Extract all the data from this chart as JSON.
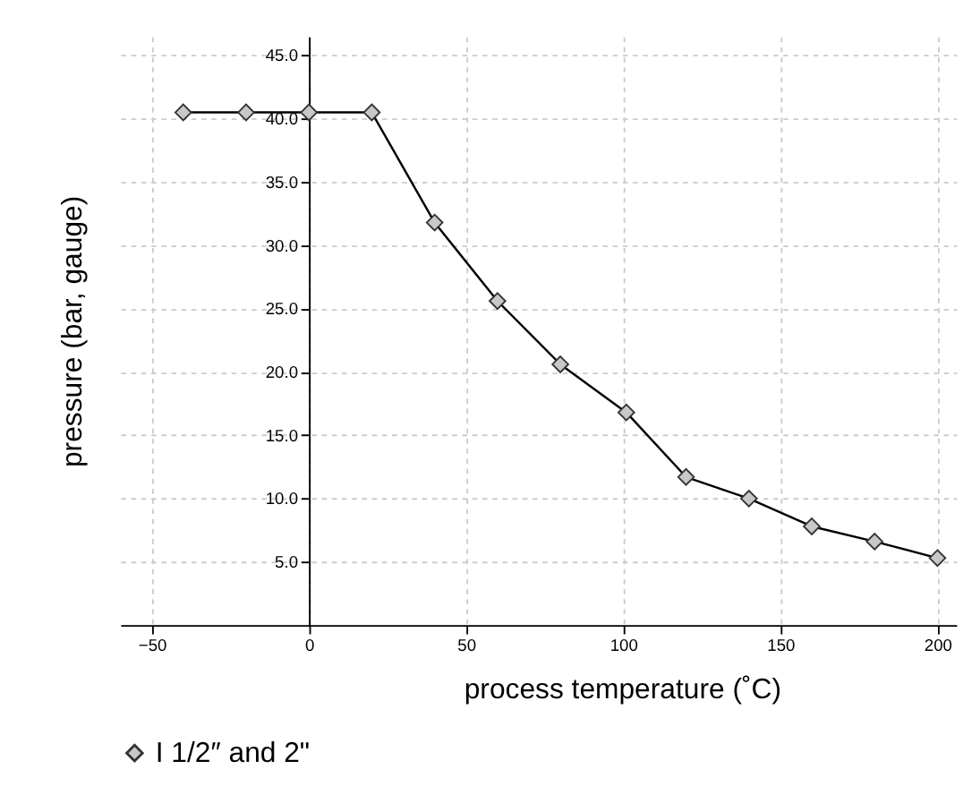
{
  "chart_data": {
    "type": "line",
    "xlabel": "process temperature (˚C)",
    "ylabel": "pressure (bar, gauge)",
    "x": [
      -40,
      -20,
      0,
      20,
      40,
      60,
      80,
      101,
      120,
      140,
      160,
      180,
      200
    ],
    "series": [
      {
        "name": "I 1/2″ and 2\"",
        "color": "#000000",
        "values": [
          40.5,
          40.5,
          40.5,
          40.5,
          31.8,
          25.6,
          20.6,
          16.8,
          11.7,
          10.0,
          7.8,
          6.6,
          5.3
        ]
      }
    ],
    "xlim": [
      -60,
      206
    ],
    "ylim": [
      0,
      46.5
    ],
    "xticks": [
      -50,
      0,
      50,
      100,
      150,
      200
    ],
    "yticks": [
      {
        "value": 5,
        "label": "5.0"
      },
      {
        "value": 10,
        "label": "10.0"
      },
      {
        "value": 15,
        "label": "15.0"
      },
      {
        "value": 20,
        "label": "20.0"
      },
      {
        "value": 25,
        "label": "25.0"
      },
      {
        "value": 30,
        "label": "30.0"
      },
      {
        "value": 35,
        "label": "35.0"
      },
      {
        "value": 40,
        "label": "40.0"
      },
      {
        "value": 45,
        "label": "45.0"
      }
    ],
    "grid": true,
    "legend": "bottom",
    "marker": "diamond",
    "line_style": "solid"
  }
}
